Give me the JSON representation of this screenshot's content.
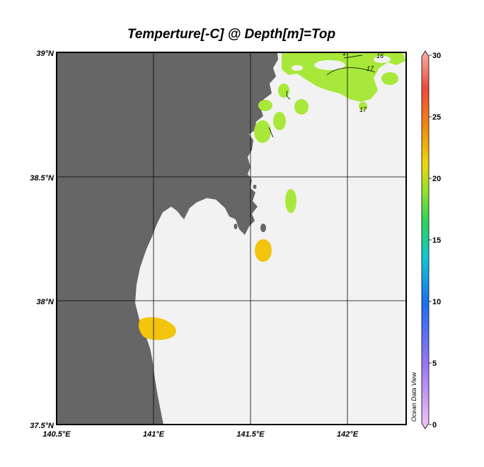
{
  "title": "Temperture[-C] @ Depth[m]=Top",
  "map": {
    "lon_range": [
      140.5,
      142.3
    ],
    "lat_range": [
      37.5,
      39.0
    ],
    "lon_ticks": [
      {
        "value": 140.5,
        "label": "140.5°E"
      },
      {
        "value": 141.0,
        "label": "141°E"
      },
      {
        "value": 141.5,
        "label": "141.5°E"
      },
      {
        "value": 142.0,
        "label": "142°E"
      }
    ],
    "lat_ticks": [
      {
        "value": 39.0,
        "label": "39°N"
      },
      {
        "value": 38.5,
        "label": "38.5°N"
      },
      {
        "value": 38.0,
        "label": "38°N"
      },
      {
        "value": 37.5,
        "label": "37.5°N"
      }
    ],
    "grid": true,
    "colors": {
      "land": "#666666",
      "ocean": "#f2f2f2",
      "green_patch": "#a8e83a",
      "yellow_patch": "#f2c40c"
    }
  },
  "contour_labels": [
    "16",
    "17",
    "17",
    "17"
  ],
  "colorbar": {
    "ticks": [
      "30",
      "25",
      "20",
      "15",
      "10",
      "5",
      "0"
    ],
    "range": [
      0,
      30
    ],
    "credit": "Ocean Data View"
  }
}
